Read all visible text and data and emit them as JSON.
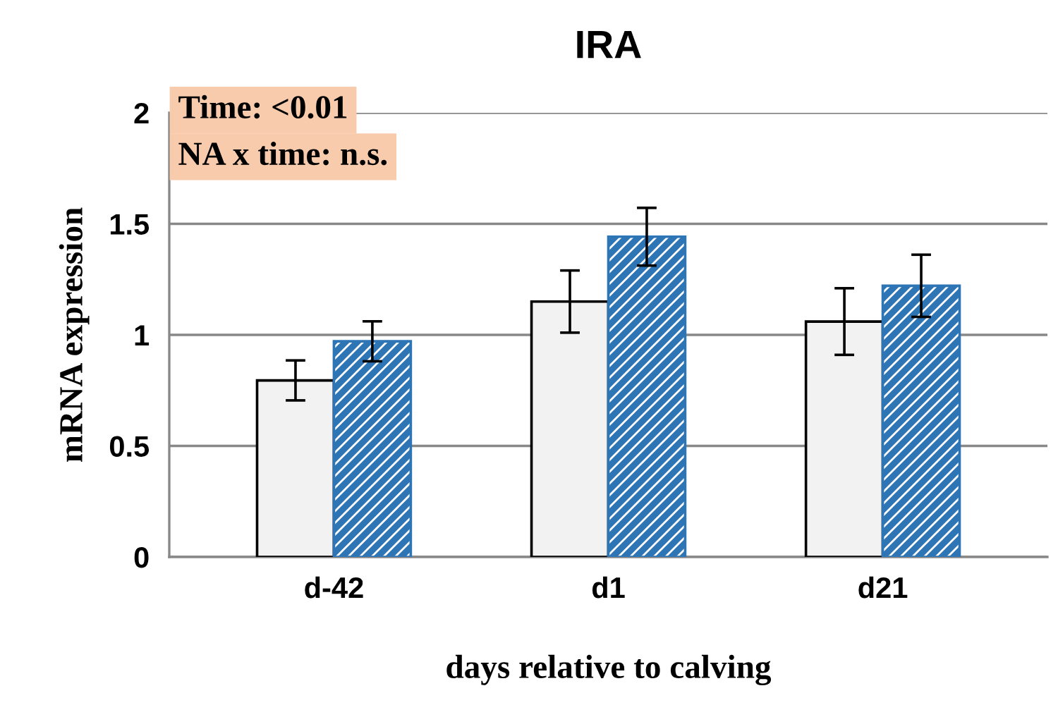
{
  "chart_data": {
    "type": "bar",
    "title": "IRA",
    "xlabel": "days relative to calving",
    "ylabel": "mRNA expression",
    "categories": [
      "d-42",
      "d1",
      "d21"
    ],
    "series": [
      {
        "color": "#f2f2f2",
        "values": [
          0.795,
          1.15,
          1.06
        ],
        "errors": [
          0.09,
          0.14,
          0.15
        ]
      },
      {
        "color": "#2e75b6",
        "values": [
          0.971,
          1.442,
          1.221
        ],
        "errors": [
          0.09,
          0.13,
          0.14
        ]
      }
    ],
    "ylim": [
      0,
      2
    ],
    "yticks": [
      0,
      0.5,
      1,
      1.5,
      2
    ],
    "grid": "y",
    "legend": false,
    "annotations": [
      "Time: <0.01",
      "NA x time: n.s."
    ]
  }
}
